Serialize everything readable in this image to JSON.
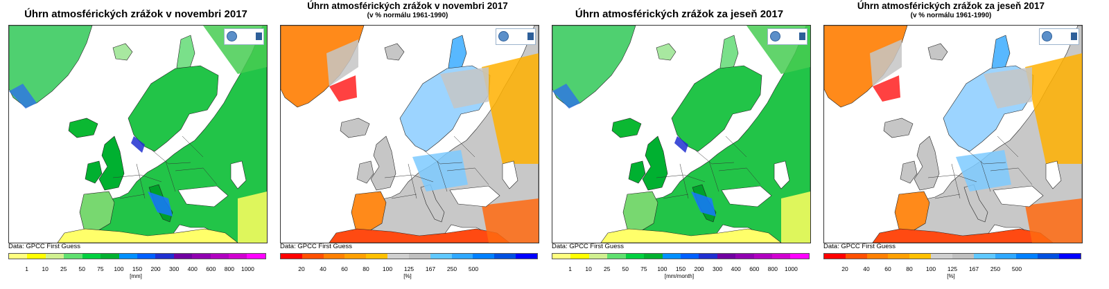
{
  "panels": [
    {
      "title": "Úhrn atmosférických zrážok v novembri 2017",
      "subtitle": "",
      "logo": "WMO RA VI RCC Network",
      "source": "Data: GPCC First Guess",
      "unit": "[mm]",
      "scale": "absolute",
      "colors": [
        "#ffff80",
        "#ffff00",
        "#d0f090",
        "#60e070",
        "#00d040",
        "#00b030",
        "#0090ff",
        "#0060ff",
        "#2030d0",
        "#7000a0",
        "#9000b0",
        "#b000c0",
        "#d000d0",
        "#ff00ff"
      ],
      "ticks": [
        "1",
        "10",
        "25",
        "50",
        "75",
        "100",
        "150",
        "200",
        "300",
        "400",
        "600",
        "800",
        "1000"
      ]
    },
    {
      "title": "Úhrn atmosférických zrážok v novembri 2017",
      "subtitle": "(v % normálu 1961-1990)",
      "logo": "WMO RA VI RCC Network",
      "source": "Data: GPCC First Guess",
      "unit": "[%]",
      "scale": "percent",
      "colors": [
        "#ff0000",
        "#ff5000",
        "#ff8000",
        "#ffa000",
        "#ffc000",
        "#d0d0d0",
        "#c0c0c0",
        "#60c8ff",
        "#30a8ff",
        "#0080ff",
        "#0050e0",
        "#0000ff"
      ],
      "ticks": [
        "20",
        "40",
        "60",
        "80",
        "100",
        "125",
        "167",
        "250",
        "500"
      ]
    },
    {
      "title": "Úhrn atmosférických zrážok za jeseň 2017",
      "subtitle": "",
      "logo": "WMO RA VI RCC Network",
      "source": "Data: GPCC First Guess",
      "unit": "[mm/month]",
      "scale": "absolute",
      "colors": [
        "#ffff80",
        "#ffff00",
        "#d0f090",
        "#60e070",
        "#00d040",
        "#00b030",
        "#0090ff",
        "#0060ff",
        "#2030d0",
        "#7000a0",
        "#9000b0",
        "#b000c0",
        "#d000d0",
        "#ff00ff"
      ],
      "ticks": [
        "1",
        "10",
        "25",
        "50",
        "75",
        "100",
        "150",
        "200",
        "300",
        "400",
        "600",
        "800",
        "1000"
      ]
    },
    {
      "title": "Úhrn atmosférických zrážok za jeseň 2017",
      "subtitle": "(v % normálu 1961-1990)",
      "logo": "WMO RA VI RCC Network",
      "source": "Data: GPCC First Guess",
      "unit": "[%]",
      "scale": "percent",
      "colors": [
        "#ff0000",
        "#ff5000",
        "#ff8000",
        "#ffa000",
        "#ffc000",
        "#d0d0d0",
        "#c0c0c0",
        "#60c8ff",
        "#30a8ff",
        "#0080ff",
        "#0050e0",
        "#0000ff"
      ],
      "ticks": [
        "20",
        "40",
        "60",
        "80",
        "100",
        "125",
        "167",
        "250",
        "500"
      ]
    }
  ]
}
